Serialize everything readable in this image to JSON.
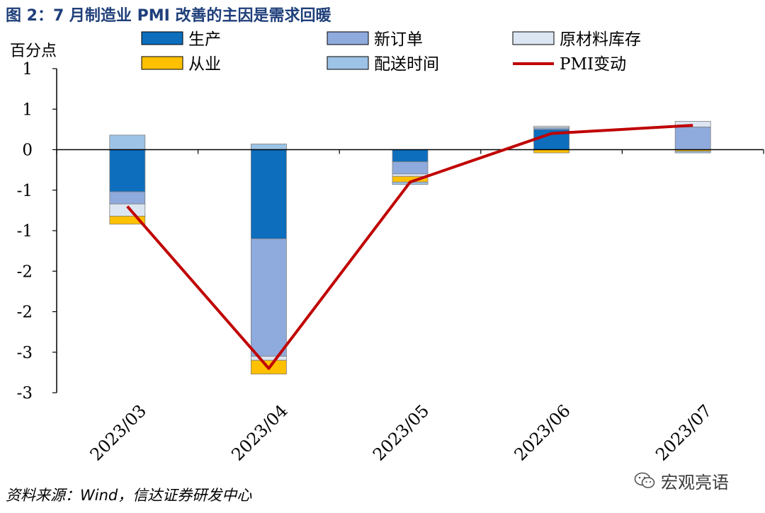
{
  "title": "图 2：7 月制造业 PMI 改善的主因是需求回暖",
  "source": "资料来源：Wind，信达证券研发中心",
  "watermark": "宏观亮语",
  "chart_data": {
    "type": "bar",
    "stacked": true,
    "ylabel": "百分点",
    "ylim": [
      -3.0,
      1.0
    ],
    "y_ticks": [
      1.0,
      0.5,
      0.0,
      -0.5,
      -1.0,
      -1.5,
      -2.0,
      -2.5,
      -3.0
    ],
    "y_tick_labels": [
      "1",
      "1",
      "0",
      "-1",
      "-1",
      "-2",
      "-2",
      "-3",
      "-3"
    ],
    "categories": [
      "2023/03",
      "2023/04",
      "2023/05",
      "2023/06",
      "2023/07"
    ],
    "legend_position": "top",
    "series": [
      {
        "name": "生产",
        "color": "#0d6ebd",
        "values": [
          -0.52,
          -1.1,
          -0.15,
          0.25,
          0.0
        ]
      },
      {
        "name": "新订单",
        "color": "#8faadc",
        "values": [
          -0.15,
          -1.45,
          -0.15,
          0.02,
          0.28
        ]
      },
      {
        "name": "原材料库存",
        "color": "#dce6f2",
        "values": [
          -0.15,
          -0.05,
          -0.03,
          0.02,
          0.07
        ]
      },
      {
        "name": "从业",
        "color": "#ffc000",
        "values": [
          -0.1,
          -0.17,
          -0.07,
          -0.04,
          -0.02
        ]
      },
      {
        "name": "配送时间",
        "color": "#9dc3e6",
        "values": [
          0.18,
          0.07,
          -0.03,
          0.0,
          -0.02
        ]
      }
    ],
    "line": {
      "name": "PMI变动",
      "color": "#c00000",
      "values": [
        -0.7,
        -2.7,
        -0.4,
        0.2,
        0.3
      ]
    }
  }
}
